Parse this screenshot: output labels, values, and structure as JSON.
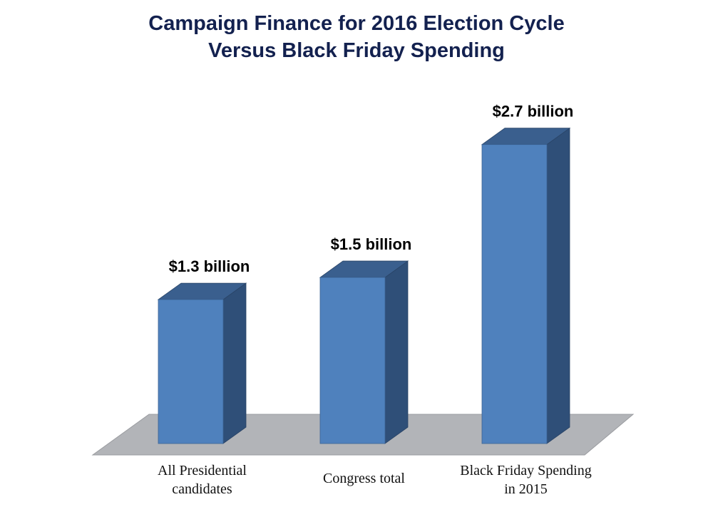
{
  "chart_data": {
    "type": "bar",
    "title": [
      "Campaign Finance for 2016 Election Cycle",
      "Versus Black Friday Spending"
    ],
    "categories": [
      [
        "All Presidential",
        "candidates"
      ],
      [
        "Congress total"
      ],
      [
        "Black Friday Spending",
        "in 2015"
      ]
    ],
    "values": [
      1.3,
      1.5,
      2.7
    ],
    "data_labels": [
      "$1.3 billion",
      "$1.5 billion",
      "$2.7 billion"
    ],
    "unit": "billion USD",
    "style": "3d-column",
    "grid": false,
    "colors": {
      "bar_front": "#4f81bd",
      "bar_top": "#3a5f8e",
      "bar_side": "#2f4f78",
      "floor": "#b2b4b8",
      "title": "#13214f"
    }
  }
}
